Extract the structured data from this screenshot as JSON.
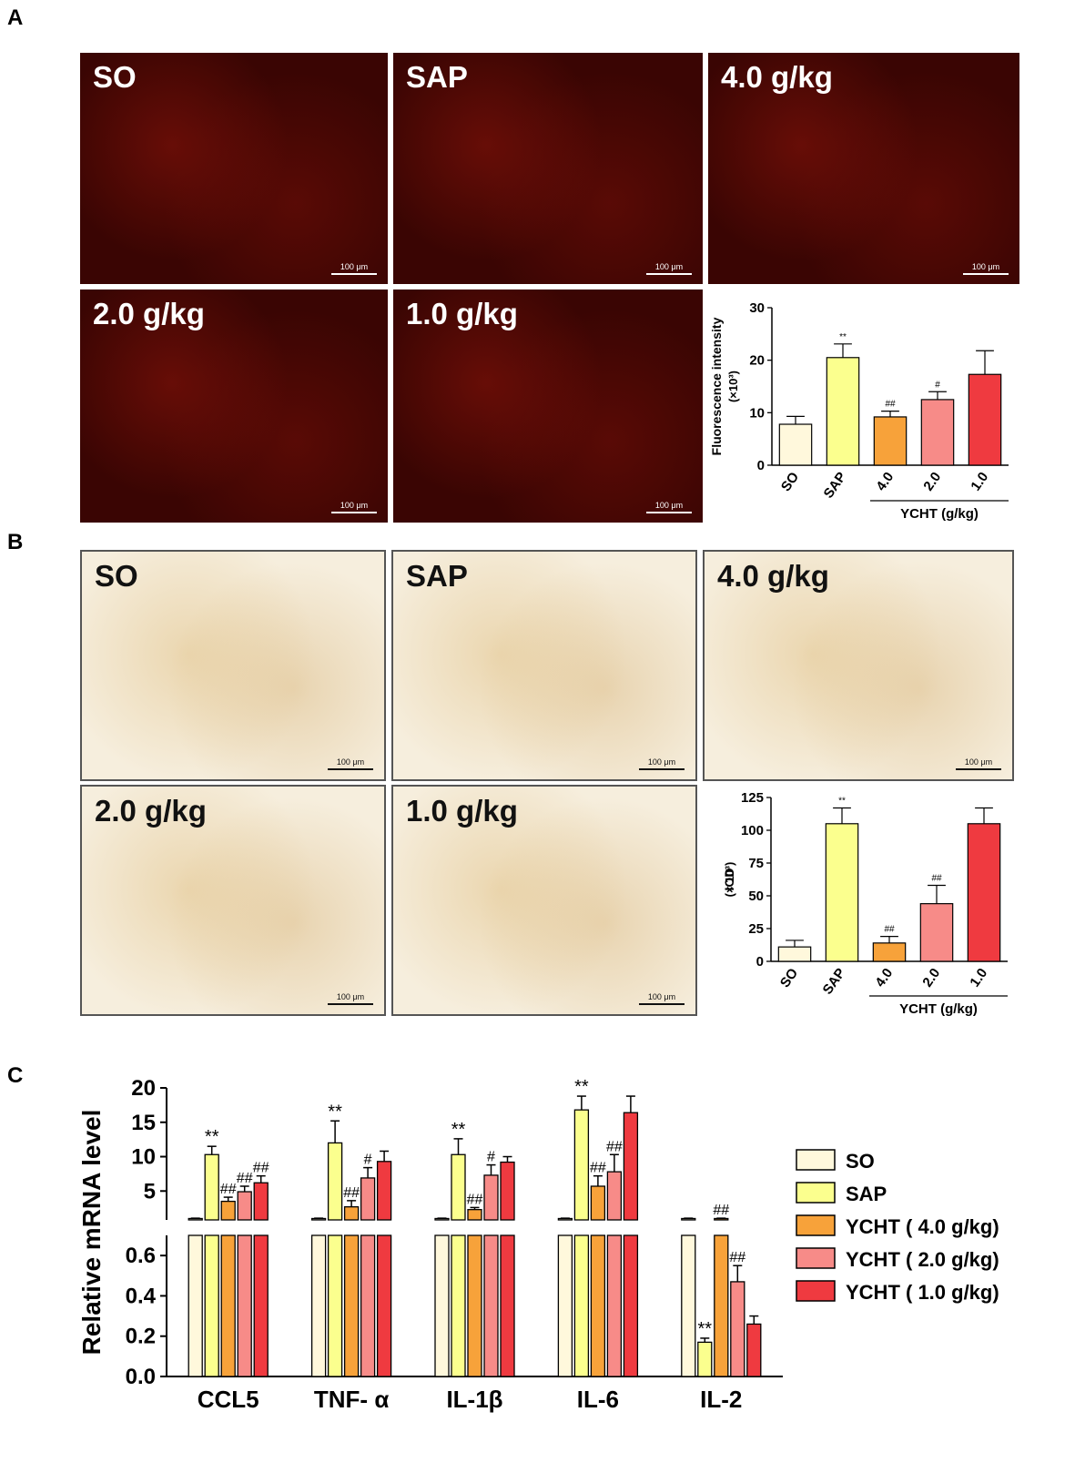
{
  "panel_labels": {
    "a": "A",
    "b": "B",
    "c": "C"
  },
  "micrographs": {
    "A": [
      {
        "label": "SO",
        "scale": "100 μm"
      },
      {
        "label": "SAP",
        "scale": "100 μm"
      },
      {
        "label": "4.0 g/kg",
        "scale": "100 μm"
      },
      {
        "label": "2.0 g/kg",
        "scale": "100 μm"
      },
      {
        "label": "1.0 g/kg",
        "scale": "100 μm"
      }
    ],
    "B": [
      {
        "label": "SO",
        "scale": "100 μm"
      },
      {
        "label": "SAP",
        "scale": "100 μm"
      },
      {
        "label": "4.0 g/kg",
        "scale": "100 μm"
      },
      {
        "label": "2.0 g/kg",
        "scale": "100 μm"
      },
      {
        "label": "1.0 g/kg",
        "scale": "100 μm"
      }
    ]
  },
  "colors": {
    "SO": "#fff8dc",
    "SAP": "#fbff8e",
    "high": "#f7a23a",
    "mid": "#f78b88",
    "low": "#ef3a40"
  },
  "chart_data": [
    {
      "panel": "A",
      "type": "bar",
      "ylabel": "Fluorescence intensity",
      "yunit_label": "(×10³)",
      "ylim": [
        0,
        30
      ],
      "yticks": [
        0,
        10,
        20,
        30
      ],
      "categories": [
        "SO",
        "SAP",
        "4.0",
        "2.0",
        "1.0"
      ],
      "values": [
        7.8,
        20.5,
        9.2,
        12.5,
        17.3
      ],
      "errors": [
        1.5,
        2.6,
        1.1,
        1.5,
        4.5
      ],
      "annotations": [
        "",
        "**",
        "##",
        "#",
        ""
      ],
      "group_label": "YCHT (g/kg)"
    },
    {
      "panel": "B",
      "type": "bar",
      "ylabel": "IOD",
      "yunit_label": "(× 10³)",
      "ylim": [
        0,
        125
      ],
      "yticks": [
        0,
        25,
        50,
        75,
        100,
        125
      ],
      "categories": [
        "SO",
        "SAP",
        "4.0",
        "2.0",
        "1.0"
      ],
      "values": [
        11,
        105,
        14,
        44,
        105
      ],
      "errors": [
        5,
        12,
        5,
        14,
        12
      ],
      "annotations": [
        "",
        "**",
        "##",
        "##",
        ""
      ],
      "group_label": "YCHT (g/kg)"
    },
    {
      "panel": "C",
      "type": "bar",
      "ylabel": "Relative mRNA level",
      "axis_break": true,
      "upper_ylim": [
        0.8,
        20
      ],
      "upper_yticks": [
        5,
        10,
        15,
        20
      ],
      "lower_ylim": [
        0,
        0.7
      ],
      "lower_yticks": [
        0.0,
        0.2,
        0.4,
        0.6
      ],
      "categories": [
        "CCL5",
        "TNF- α",
        "IL-1β",
        "IL-6",
        "IL-2"
      ],
      "series": [
        {
          "name": "SO",
          "values": [
            1.0,
            1.0,
            1.0,
            1.0,
            1.0
          ],
          "errors": [
            0.05,
            0.05,
            0.05,
            0.05,
            0.05
          ],
          "annotations": [
            "",
            "",
            "",
            "",
            ""
          ]
        },
        {
          "name": "SAP",
          "values": [
            10.3,
            12.0,
            10.3,
            16.8,
            0.17
          ],
          "errors": [
            1.2,
            3.2,
            2.3,
            2.0,
            0.02
          ],
          "annotations": [
            "**",
            "**",
            "**",
            "**",
            "**"
          ]
        },
        {
          "name": "YCHT ( 4.0 g/kg)",
          "values": [
            3.5,
            2.7,
            2.3,
            5.7,
            1.0
          ],
          "errors": [
            0.6,
            0.9,
            0.3,
            1.5,
            0.05
          ],
          "annotations": [
            "##",
            "##",
            "##",
            "##",
            "##"
          ]
        },
        {
          "name": "YCHT ( 2.0 g/kg)",
          "values": [
            4.9,
            6.9,
            7.3,
            7.8,
            0.47
          ],
          "errors": [
            0.8,
            1.5,
            1.5,
            2.5,
            0.08
          ],
          "annotations": [
            "##",
            "#",
            "#",
            "##",
            "##"
          ]
        },
        {
          "name": "YCHT ( 1.0 g/kg)",
          "values": [
            6.2,
            9.3,
            9.2,
            16.4,
            0.26
          ],
          "errors": [
            1.0,
            1.5,
            0.8,
            2.4,
            0.04
          ],
          "annotations": [
            "##",
            "",
            "",
            "",
            ""
          ]
        }
      ],
      "legend": [
        "SO",
        "SAP",
        "YCHT ( 4.0 g/kg)",
        "YCHT ( 2.0 g/kg)",
        "YCHT ( 1.0 g/kg)"
      ],
      "legend_position": "right"
    }
  ]
}
